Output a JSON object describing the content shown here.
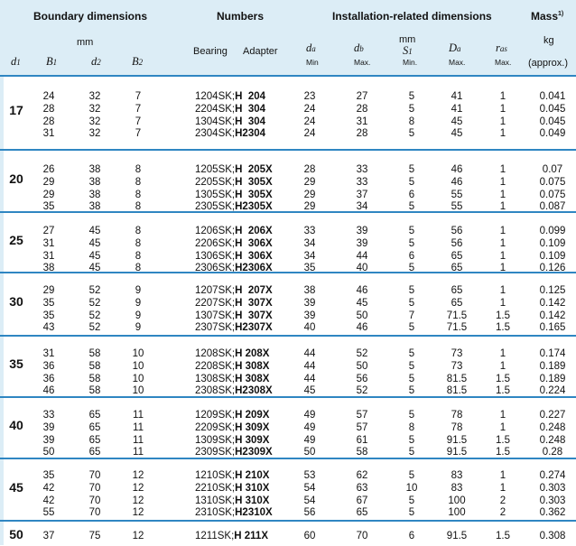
{
  "header": {
    "boundary": "Boundary dimensions",
    "numbers": "Numbers",
    "installation": "Installation-related dimensions",
    "mass": "Mass",
    "mass_sup": "1)",
    "mm_left": "mm",
    "mm_right": "mm",
    "kg": "kg",
    "bearing": "Bearing",
    "adapter": "Adapter",
    "min": "Min",
    "max": "Max.",
    "min2": "Min.",
    "approx": "(approx.)"
  },
  "groups": [
    {
      "d1": "17",
      "rows": [
        [
          "24",
          "32",
          "7",
          "1204SK;",
          "H  204",
          "23",
          "27",
          "5",
          "41",
          "1",
          "0.041"
        ],
        [
          "28",
          "32",
          "7",
          "2204SK;",
          "H  304",
          "24",
          "28",
          "5",
          "41",
          "1",
          "0.045"
        ],
        [
          "28",
          "32",
          "7",
          "1304SK;",
          "H  304",
          "24",
          "31",
          "8",
          "45",
          "1",
          "0.045"
        ],
        [
          "31",
          "32",
          "7",
          "2304SK;",
          "H2304",
          "24",
          "28",
          "5",
          "45",
          "1",
          "0.049"
        ]
      ]
    },
    {
      "d1": "20",
      "rows": [
        [
          "26",
          "38",
          "8",
          "1205SK;",
          "H  205X",
          "28",
          "33",
          "5",
          "46",
          "1",
          "0.07"
        ],
        [
          "29",
          "38",
          "8",
          "2205SK;",
          "H  305X",
          "29",
          "33",
          "5",
          "46",
          "1",
          "0.075"
        ],
        [
          "29",
          "38",
          "8",
          "1305SK;",
          "H  305X",
          "29",
          "37",
          "6",
          "55",
          "1",
          "0.075"
        ],
        [
          "35",
          "38",
          "8",
          "2305SK;",
          "H2305X",
          "29",
          "34",
          "5",
          "55",
          "1",
          "0.087"
        ]
      ]
    },
    {
      "d1": "25",
      "rows": [
        [
          "27",
          "45",
          "8",
          "1206SK;",
          "H  206X",
          "33",
          "39",
          "5",
          "56",
          "1",
          "0.099"
        ],
        [
          "31",
          "45",
          "8",
          "2206SK;",
          "H  306X",
          "34",
          "39",
          "5",
          "56",
          "1",
          "0.109"
        ],
        [
          "31",
          "45",
          "8",
          "1306SK;",
          "H  306X",
          "34",
          "44",
          "6",
          "65",
          "1",
          "0.109"
        ],
        [
          "38",
          "45",
          "8",
          "2306SK;",
          "H2306X",
          "35",
          "40",
          "5",
          "65",
          "1",
          "0.126"
        ]
      ]
    },
    {
      "d1": "30",
      "rows": [
        [
          "29",
          "52",
          "9",
          "1207SK;",
          "H  207X",
          "38",
          "46",
          "5",
          "65",
          "1",
          "0.125"
        ],
        [
          "35",
          "52",
          "9",
          "2207SK;",
          "H  307X",
          "39",
          "45",
          "5",
          "65",
          "1",
          "0.142"
        ],
        [
          "35",
          "52",
          "9",
          "1307SK;",
          "H  307X",
          "39",
          "50",
          "7",
          "71.5",
          "1.5",
          "0.142"
        ],
        [
          "43",
          "52",
          "9",
          "2307SK;",
          "H2307X",
          "40",
          "46",
          "5",
          "71.5",
          "1.5",
          "0.165"
        ]
      ]
    },
    {
      "d1": "35",
      "rows": [
        [
          "31",
          "58",
          "10",
          "1208SK;",
          "H 208X",
          "44",
          "52",
          "5",
          "73",
          "1",
          "0.174"
        ],
        [
          "36",
          "58",
          "10",
          "2208SK;",
          "H 308X",
          "44",
          "50",
          "5",
          "73",
          "1",
          "0.189"
        ],
        [
          "36",
          "58",
          "10",
          "1308SK;",
          "H 308X",
          "44",
          "56",
          "5",
          "81.5",
          "1.5",
          "0.189"
        ],
        [
          "46",
          "58",
          "10",
          "2308SK;",
          "H2308X",
          "45",
          "52",
          "5",
          "81.5",
          "1.5",
          "0.224"
        ]
      ]
    },
    {
      "d1": "40",
      "rows": [
        [
          "33",
          "65",
          "11",
          "1209SK;",
          "H 209X",
          "49",
          "57",
          "5",
          "78",
          "1",
          "0.227"
        ],
        [
          "39",
          "65",
          "11",
          "2209SK;",
          "H 309X",
          "49",
          "57",
          "8",
          "78",
          "1",
          "0.248"
        ],
        [
          "39",
          "65",
          "11",
          "1309SK;",
          "H 309X",
          "49",
          "61",
          "5",
          "91.5",
          "1.5",
          "0.248"
        ],
        [
          "50",
          "65",
          "11",
          "2309SK;",
          "H2309X",
          "50",
          "58",
          "5",
          "91.5",
          "1.5",
          "0.28"
        ]
      ]
    },
    {
      "d1": "45",
      "rows": [
        [
          "35",
          "70",
          "12",
          "1210SK;",
          "H 210X",
          "53",
          "62",
          "5",
          "83",
          "1",
          "0.274"
        ],
        [
          "42",
          "70",
          "12",
          "2210SK;",
          "H 310X",
          "54",
          "63",
          "10",
          "83",
          "1",
          "0.303"
        ],
        [
          "42",
          "70",
          "12",
          "1310SK;",
          "H 310X",
          "54",
          "67",
          "5",
          "100",
          "2",
          "0.303"
        ],
        [
          "55",
          "70",
          "12",
          "2310SK;",
          "H2310X",
          "56",
          "65",
          "5",
          "100",
          "2",
          "0.362"
        ]
      ]
    },
    {
      "d1": "50",
      "rows": [
        [
          "37",
          "75",
          "12",
          "1211SK;",
          "H 211X",
          "60",
          "70",
          "6",
          "91.5",
          "1.5",
          "0.308"
        ]
      ]
    }
  ]
}
